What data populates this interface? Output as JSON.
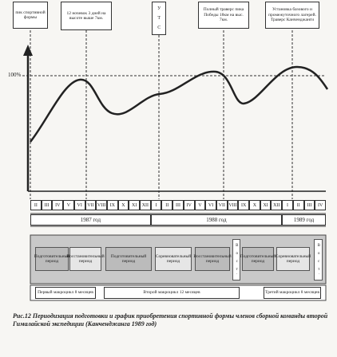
{
  "top_boxes": [
    "пик спортивной формы",
    "12 ночевок 3 дней на высоте выше 7км.",
    "У Т С",
    "Полный траверс пика Победы 18км на выс. 7км.",
    "Установка базового и промежуточного лагерей. Траверс Канченджанги"
  ],
  "y_label": "100%",
  "months": [
    "II",
    "III",
    "IV",
    "V",
    "VI",
    "VII",
    "VIII",
    "IX",
    "X",
    "XI",
    "XII",
    "I",
    "II",
    "III",
    "IV",
    "V",
    "VI",
    "VII",
    "VIII",
    "IX",
    "X",
    "XI",
    "XII",
    "I",
    "II",
    "III",
    "IV"
  ],
  "years": [
    "1987 год",
    "1988 год",
    "1989 год"
  ],
  "periods": [
    "Подготовительный период",
    "Восстановительный период",
    "Подготовительный период",
    "Соревновательный период",
    "Восстановительный период",
    "В о с т.",
    "Подготовительный период",
    "Соревновательный период",
    "В о с т."
  ],
  "macrocycles": [
    "Первый макроцикл 8 месяцев",
    "Второй макроцикл 12 месяцев",
    "Третий макроцикл 8 месяцев"
  ],
  "caption": {
    "number": "Рис.12",
    "text": "Периодизация подготовки и график приобретения спортивной формы членов сборной команды второй Гималайской экспедиции (Канченджанга 1989 год)"
  }
}
